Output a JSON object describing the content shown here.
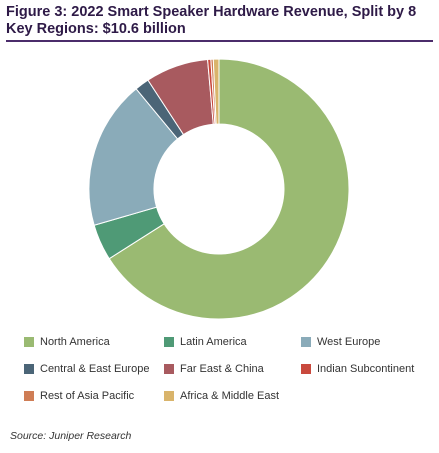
{
  "figure": {
    "title": "Figure 3: 2022 Smart Speaker Hardware Revenue, Split by 8 Key Regions: $10.6 billion",
    "title_color": "#2e1a47",
    "rule_color": "#4b2c6b",
    "source": "Source: Juniper Research"
  },
  "chart_data": {
    "type": "pie",
    "donut": true,
    "title": "Figure 3: 2022 Smart Speaker Hardware Revenue, Split by 8 Key Regions: $10.6 billion",
    "legend_placement": "bottom",
    "categories": [
      "North America",
      "Latin America",
      "West Europe",
      "Central & East Europe",
      "Far East & China",
      "Indian Subcontinent",
      "Rest of Asia Pacific",
      "Africa & Middle East"
    ],
    "values": [
      66.0,
      4.5,
      18.5,
      1.8,
      7.8,
      0.4,
      0.3,
      0.7
    ],
    "colors": [
      "#9aba72",
      "#4f9a76",
      "#8aabb9",
      "#4b6577",
      "#a85a5f",
      "#c9493d",
      "#cf7d55",
      "#d9b46b"
    ]
  }
}
